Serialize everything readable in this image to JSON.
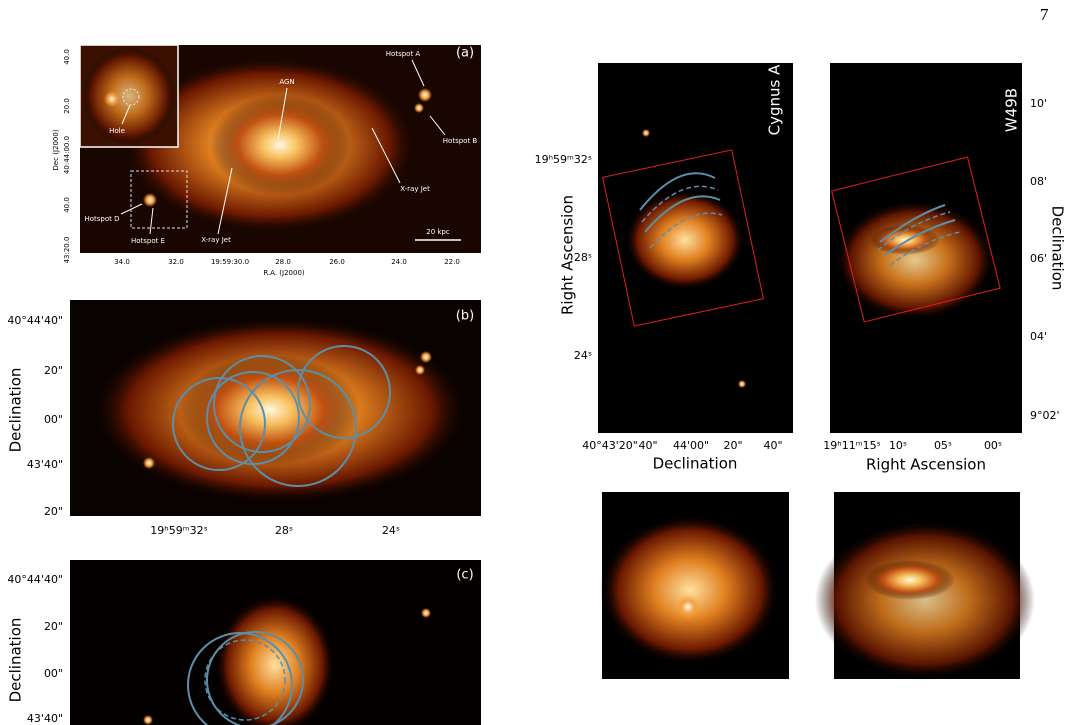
{
  "page_number": "7",
  "panel_a": {
    "label": "(a)",
    "y_label": "Dec (J2000)",
    "x_label": "R.A. (J2000)",
    "y_ticks": [
      "40.0",
      "20.0",
      "40:44:00.0",
      "40.0",
      "43:20.0"
    ],
    "x_ticks": [
      "34.0",
      "32.0",
      "19:59:30.0",
      "28.0",
      "26.0",
      "24.0",
      "22.0"
    ],
    "annotations": {
      "agn": "AGN",
      "hotspot_a": "Hotspot A",
      "hotspot_b": "Hotspot B",
      "jet_right": "X-ray Jet",
      "jet_left": "X-ray Jet",
      "hotspot_d": "Hotspot D",
      "hotspot_e": "Hotspot E",
      "hole": "Hole",
      "scale": "20 kpc"
    }
  },
  "panel_b": {
    "label": "(b)",
    "y_label": "Declination",
    "y_ticks": [
      "40°44'40\"",
      "20\"",
      "00\"",
      "43'40\"",
      "20\""
    ],
    "x_ticks": [
      "19ʰ59ᵐ32ˢ",
      "28ˢ",
      "24ˢ"
    ]
  },
  "panel_c": {
    "label": "(c)",
    "y_label": "Declination",
    "y_ticks": [
      "40°44'40\"",
      "20\"",
      "00\"",
      "43'40\""
    ]
  },
  "cygnus_a": {
    "label": "Cygnus A",
    "y_label": "Right Ascension",
    "x_label": "Declination",
    "y_ticks": [
      "19ʰ59ᵐ32ˢ",
      "28ˢ",
      "24ˢ"
    ],
    "x_ticks": [
      "40°43'20\"",
      "40\"",
      "44'00\"",
      "20\"",
      "40\""
    ]
  },
  "w49b": {
    "label": "W49B",
    "y_label": "Declination",
    "x_label": "Right Ascension",
    "y_ticks": [
      "10'",
      "08'",
      "06'",
      "04'",
      "9°02'"
    ],
    "x_ticks": [
      "19ʰ11ᵐ15ˢ",
      "10ˢ",
      "05ˢ",
      "00ˢ"
    ]
  }
}
